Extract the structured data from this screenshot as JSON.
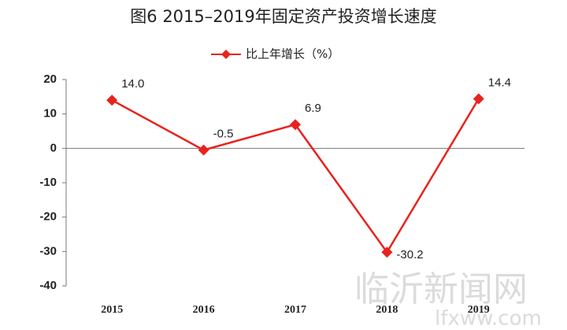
{
  "chart_data": {
    "type": "line",
    "title": "图6 2015–2019年固定资产投资增长速度",
    "categories": [
      "2015",
      "2016",
      "2017",
      "2018",
      "2019"
    ],
    "series": [
      {
        "name": "比上年增长（%）",
        "color": "#e8231e",
        "values": [
          14.0,
          -0.5,
          6.9,
          -30.2,
          14.4
        ],
        "value_labels": [
          "14.0",
          "-0.5",
          "6.9",
          "-30.2",
          "14.4"
        ]
      }
    ],
    "ylim": [
      -40,
      20
    ],
    "yticks": [
      -40,
      -30,
      -20,
      -10,
      0,
      10,
      20
    ],
    "watermark": [
      "临沂新闻网",
      "lfxww.com"
    ]
  }
}
